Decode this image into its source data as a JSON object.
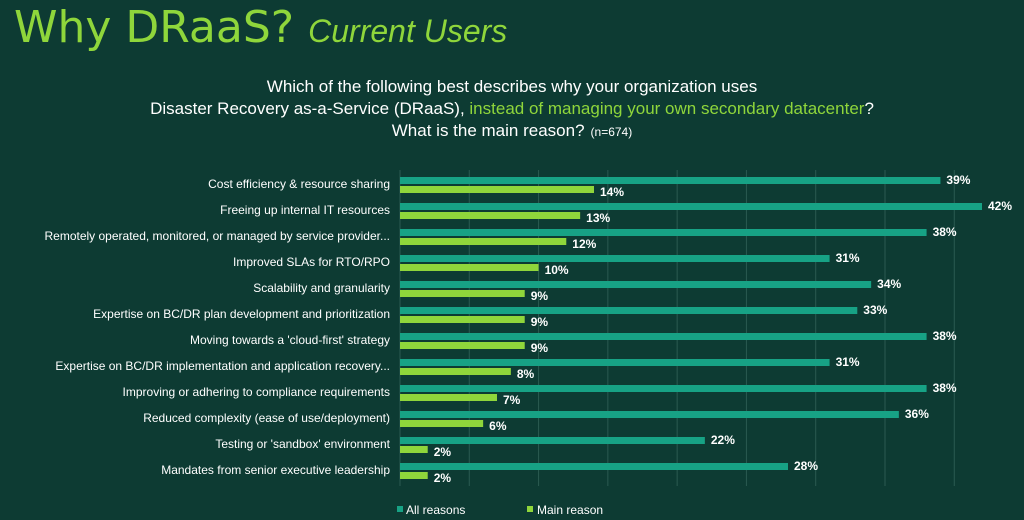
{
  "header": {
    "title": "Why DRaaS?",
    "subtitle": "Current Users"
  },
  "question": {
    "line1": "Which of the following best describes why your organization uses",
    "line2_prefix": "Disaster Recovery as-a-Service (DRaaS), ",
    "line2_highlight": "instead of managing your own secondary datacenter",
    "line2_suffix": "?",
    "line3": "What is the main reason?",
    "sample": "(n=674)"
  },
  "colors": {
    "background": "#0d3b33",
    "all_reasons": "#17a285",
    "main_reason": "#8fd63b",
    "accent_text": "#8fd63b"
  },
  "chart_data": {
    "type": "bar",
    "orientation": "horizontal",
    "categories": [
      "Cost efficiency & resource sharing",
      "Freeing up internal IT resources",
      "Remotely operated, monitored, or managed by service provider...",
      "Improved SLAs for RTO/RPO",
      "Scalability and granularity",
      "Expertise on BC/DR plan development and prioritization",
      "Moving towards a 'cloud-first' strategy",
      "Expertise on BC/DR implementation and application recovery...",
      "Improving or adhering to compliance requirements",
      "Reduced complexity (ease of use/deployment)",
      "Testing or 'sandbox' environment",
      "Mandates from senior executive leadership"
    ],
    "series": [
      {
        "name": "All reasons",
        "values": [
          39,
          42,
          38,
          31,
          34,
          33,
          38,
          31,
          38,
          36,
          22,
          28
        ]
      },
      {
        "name": "Main reason",
        "values": [
          14,
          13,
          12,
          10,
          9,
          9,
          9,
          8,
          7,
          6,
          2,
          2
        ]
      }
    ],
    "value_suffix": "%",
    "xlim": [
      0,
      42
    ],
    "grid": true,
    "legend_position": "bottom"
  }
}
